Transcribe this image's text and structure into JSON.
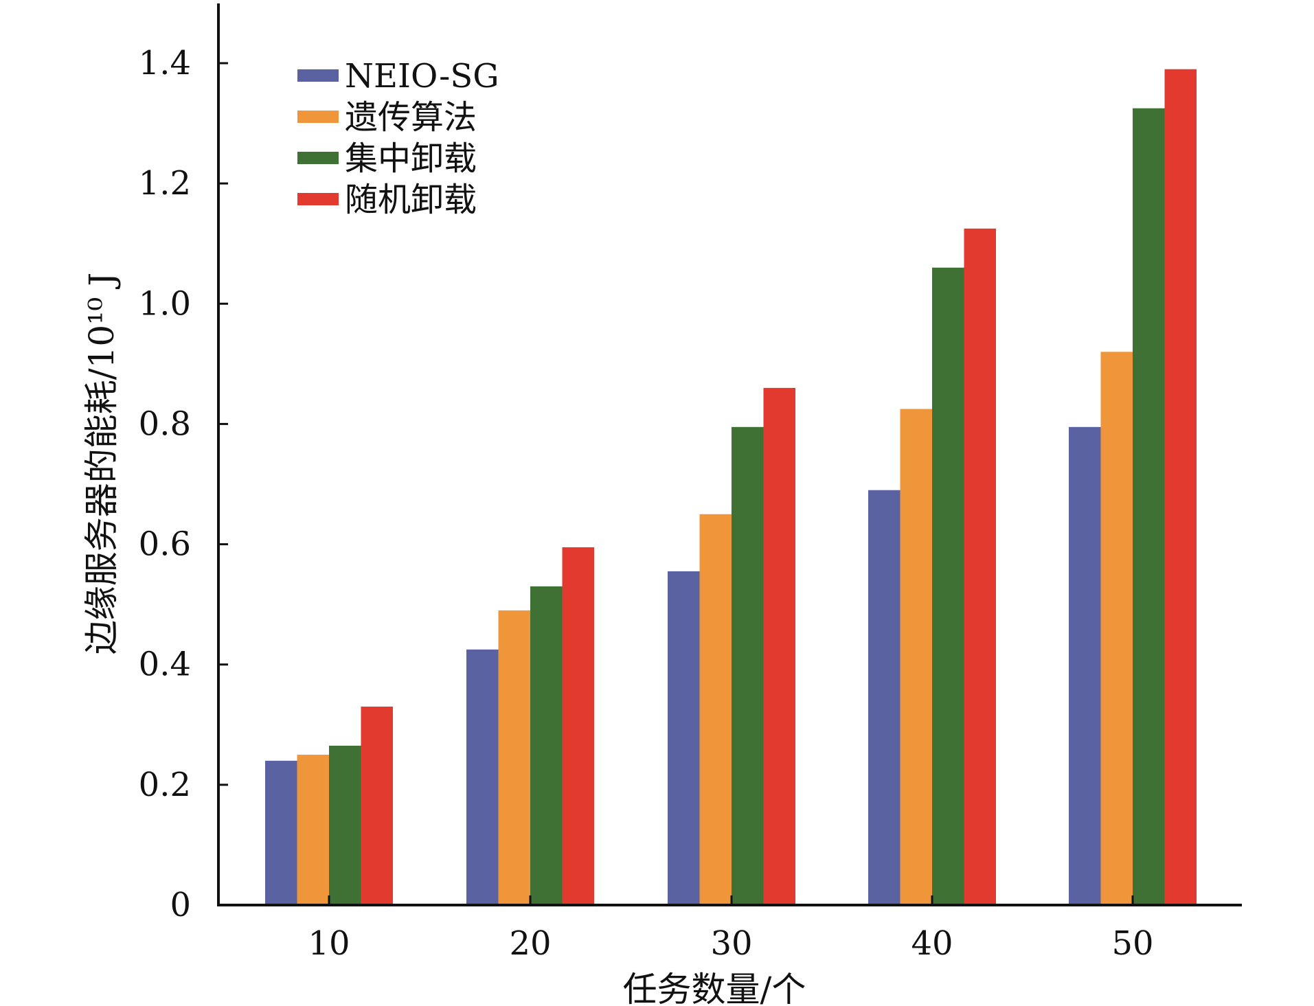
{
  "chart_data": {
    "type": "bar",
    "title": "",
    "xlabel": "任务数量/个",
    "ylabel": "边缘服务器的能耗/10¹⁰ J",
    "categories": [
      "10",
      "20",
      "30",
      "40",
      "50"
    ],
    "series": [
      {
        "name": "NEIO-SG",
        "color": "#5a62a1",
        "values": [
          0.24,
          0.425,
          0.555,
          0.69,
          0.795
        ]
      },
      {
        "name": "遗传算法",
        "color": "#f0963a",
        "values": [
          0.25,
          0.49,
          0.65,
          0.825,
          0.92
        ]
      },
      {
        "name": "集中卸载",
        "color": "#3f7034",
        "values": [
          0.265,
          0.53,
          0.795,
          1.06,
          1.325
        ]
      },
      {
        "name": "随机卸载",
        "color": "#e23a2f",
        "values": [
          0.33,
          0.595,
          0.86,
          1.125,
          1.39
        ]
      }
    ],
    "ylim": [
      0,
      1.5
    ],
    "yticks": [
      "0",
      "0.2",
      "0.4",
      "0.6",
      "0.8",
      "1.0",
      "1.2",
      "1.4"
    ],
    "grid": false,
    "legend_position": "top-left"
  }
}
